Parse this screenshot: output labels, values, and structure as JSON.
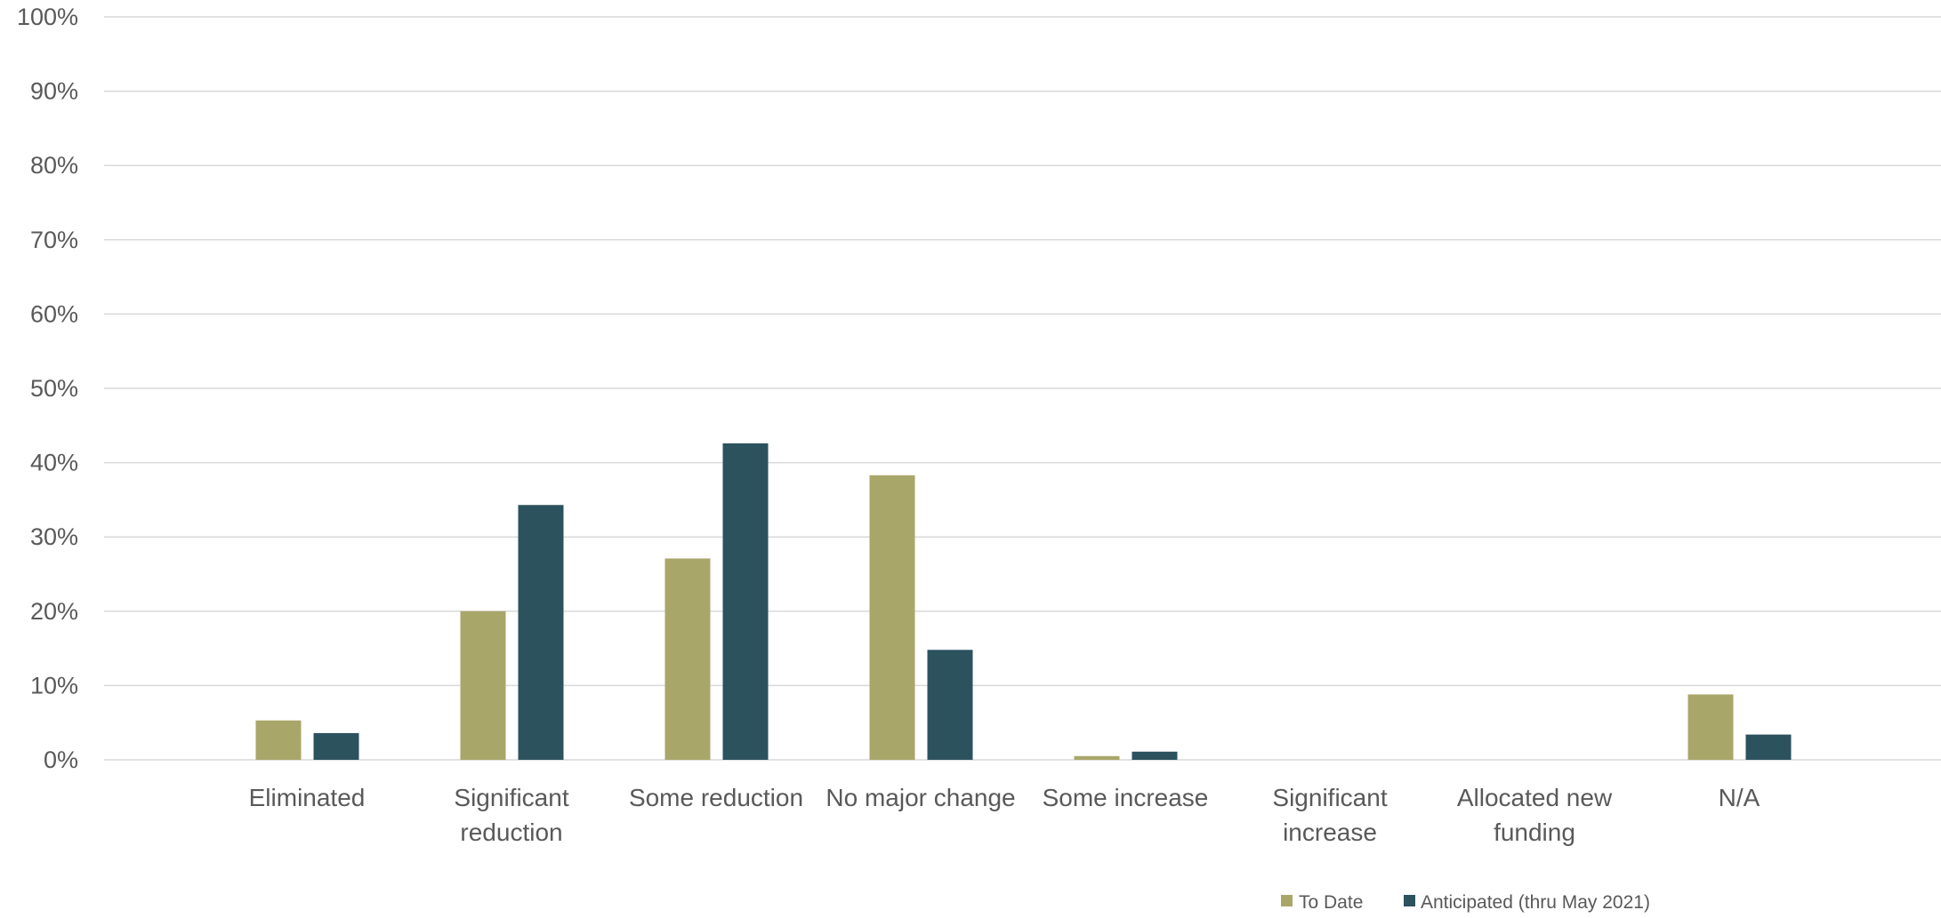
{
  "chart_data": {
    "type": "bar",
    "categories": [
      [
        "Eliminated"
      ],
      [
        "Significant",
        "reduction"
      ],
      [
        "Some reduction"
      ],
      [
        "No major change"
      ],
      [
        "Some increase"
      ],
      [
        "Significant",
        "increase"
      ],
      [
        "Allocated new",
        "funding"
      ],
      [
        "N/A"
      ]
    ],
    "series": [
      {
        "name": "To Date",
        "color": "#a9a66a",
        "values": [
          5.3,
          20.0,
          27.1,
          38.3,
          0.5,
          0,
          0,
          8.8
        ]
      },
      {
        "name": "Anticipated (thru May 2021)",
        "color": "#2c525e",
        "values": [
          3.6,
          34.3,
          42.6,
          14.8,
          1.1,
          0,
          0,
          3.4
        ]
      }
    ],
    "ylim": [
      0,
      100
    ],
    "y_ticks": [
      "0%",
      "10%",
      "20%",
      "30%",
      "40%",
      "50%",
      "60%",
      "70%",
      "80%",
      "90%",
      "100%"
    ],
    "grid": true,
    "legend": "bottom"
  }
}
